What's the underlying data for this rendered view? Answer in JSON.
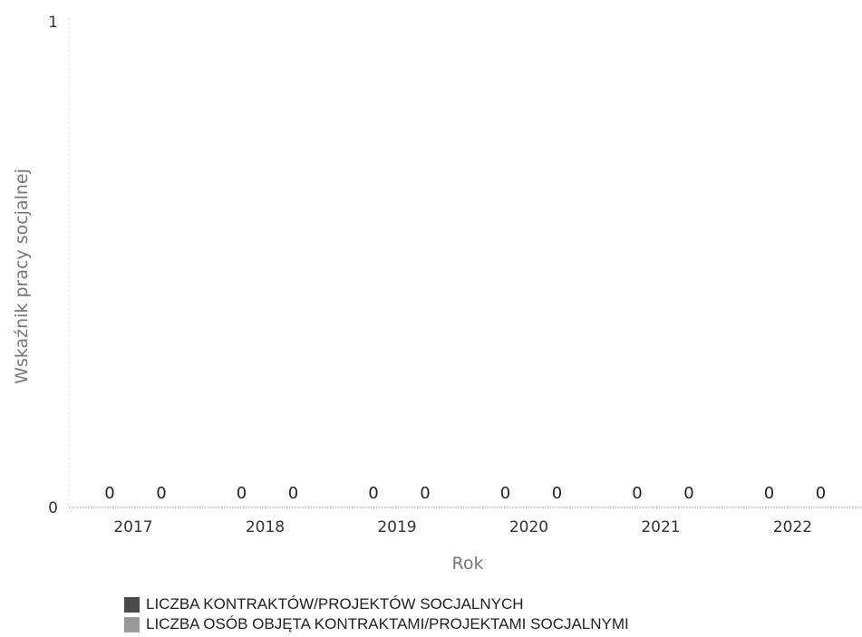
{
  "chart_data": {
    "type": "bar",
    "categories": [
      "2017",
      "2018",
      "2019",
      "2020",
      "2021",
      "2022"
    ],
    "series": [
      {
        "name": "LICZBA KONTRAKTÓW/PROJEKTÓW SOCJALNYCH",
        "values": [
          0,
          0,
          0,
          0,
          0,
          0
        ],
        "color": "#4a4a4a"
      },
      {
        "name": "LICZBA OSÓB OBJĘTA KONTRAKTAMI/PROJEKTAMI SOCJALNYMI",
        "values": [
          0,
          0,
          0,
          0,
          0,
          0
        ],
        "color": "#9a9a9a"
      }
    ],
    "data_labels": [
      "0",
      "0",
      "0",
      "0",
      "0",
      "0",
      "0",
      "0",
      "0",
      "0",
      "0",
      "0"
    ],
    "title": "",
    "xlabel": "Rok",
    "ylabel": "Wskaźnik pracy socjalnej",
    "ylim": [
      0,
      1
    ],
    "yticks": [
      "0",
      "1"
    ],
    "grid": false,
    "legend_position": "bottom"
  }
}
